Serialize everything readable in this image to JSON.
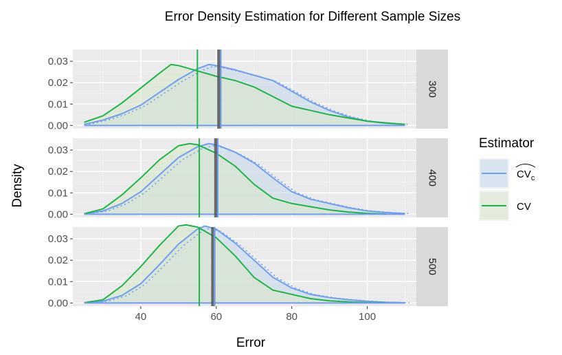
{
  "chart_data": {
    "type": "area",
    "title": "Error Density Estimation for Different Sample Sizes",
    "xlabel": "Error",
    "ylabel": "Density",
    "xlim": [
      22,
      113
    ],
    "ylim": [
      -0.0015,
      0.0355
    ],
    "x_ticks": [
      40,
      60,
      80,
      100
    ],
    "y_ticks": [
      0.0,
      0.01,
      0.02,
      0.03
    ],
    "y_tick_labels": [
      "0.00",
      "0.01",
      "0.02",
      "0.03"
    ],
    "grid": true,
    "legend": {
      "title": "Estimator",
      "position": "right",
      "entries": [
        {
          "key": "cvc",
          "label": "CV",
          "label_sub": "c",
          "hat": true,
          "color": "#6f9ef0"
        },
        {
          "key": "cv",
          "label": "CV",
          "color": "#1db546"
        }
      ]
    },
    "facets": [
      {
        "label": "300",
        "true_mean": 60.8,
        "series": [
          {
            "key": "cvc",
            "vline": 61.2,
            "x": [
              25,
              30,
              35,
              40,
              45,
              50,
              55,
              58,
              60,
              65,
              70,
              75,
              80,
              85,
              90,
              95,
              100,
              105,
              110
            ],
            "y": [
              0.0005,
              0.0025,
              0.0055,
              0.0095,
              0.0155,
              0.0215,
              0.0265,
              0.0285,
              0.028,
              0.026,
              0.0235,
              0.021,
              0.016,
              0.011,
              0.007,
              0.004,
              0.002,
              0.001,
              0.0005
            ]
          },
          {
            "key": "cv",
            "vline": 55.0,
            "x": [
              25,
              30,
              35,
              40,
              45,
              48,
              50,
              55,
              60,
              65,
              70,
              75,
              80,
              85,
              90,
              95,
              100,
              105,
              110
            ],
            "y": [
              0.0015,
              0.0045,
              0.0105,
              0.0175,
              0.0245,
              0.0285,
              0.028,
              0.0255,
              0.023,
              0.021,
              0.018,
              0.0135,
              0.009,
              0.007,
              0.005,
              0.0035,
              0.002,
              0.0012,
              0.0005
            ]
          }
        ]
      },
      {
        "label": "400",
        "true_mean": 60.0,
        "series": [
          {
            "key": "cvc",
            "vline": 60.4,
            "x": [
              25,
              30,
              35,
              40,
              45,
              50,
              55,
              58,
              60,
              65,
              70,
              75,
              80,
              85,
              90,
              95,
              100,
              105,
              110
            ],
            "y": [
              0.0002,
              0.0015,
              0.005,
              0.0105,
              0.0185,
              0.0265,
              0.0315,
              0.033,
              0.0325,
              0.029,
              0.024,
              0.017,
              0.0105,
              0.007,
              0.005,
              0.003,
              0.0015,
              0.0008,
              0.0003
            ]
          },
          {
            "key": "cv",
            "vline": 55.5,
            "x": [
              25,
              30,
              35,
              40,
              45,
              50,
              53,
              55,
              60,
              65,
              70,
              75,
              80,
              85,
              90,
              95,
              100,
              105
            ],
            "y": [
              0.0002,
              0.0025,
              0.009,
              0.017,
              0.0255,
              0.032,
              0.033,
              0.0325,
              0.0285,
              0.0225,
              0.014,
              0.0075,
              0.005,
              0.0035,
              0.002,
              0.001,
              0.0004,
              0.0001
            ]
          }
        ]
      },
      {
        "label": "500",
        "true_mean": 59.2,
        "series": [
          {
            "key": "cvc",
            "vline": 59.5,
            "x": [
              25,
              30,
              35,
              40,
              45,
              50,
              55,
              57,
              60,
              65,
              70,
              75,
              80,
              85,
              90,
              95,
              100,
              105,
              110
            ],
            "y": [
              0.0001,
              0.0008,
              0.0035,
              0.009,
              0.018,
              0.0275,
              0.0345,
              0.036,
              0.0345,
              0.028,
              0.02,
              0.012,
              0.007,
              0.004,
              0.0025,
              0.0015,
              0.0008,
              0.0003,
              0.0001
            ]
          },
          {
            "key": "cv",
            "vline": 55.5,
            "x": [
              25,
              30,
              35,
              40,
              45,
              50,
              52,
              55,
              60,
              65,
              70,
              75,
              80,
              85,
              90,
              95,
              100,
              105
            ],
            "y": [
              0.0001,
              0.0015,
              0.008,
              0.017,
              0.027,
              0.036,
              0.0365,
              0.0355,
              0.0305,
              0.022,
              0.012,
              0.006,
              0.004,
              0.002,
              0.001,
              0.0005,
              0.0002,
              0.0001
            ]
          }
        ]
      }
    ]
  }
}
